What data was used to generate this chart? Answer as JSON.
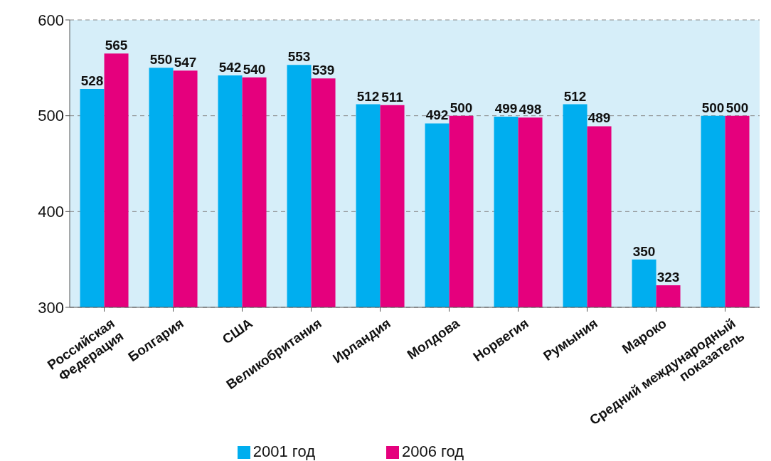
{
  "chart_data": {
    "type": "bar",
    "categories": [
      "Российская\nФедерация",
      "Болгария",
      "США",
      "Великобритания",
      "Ирландия",
      "Молдова",
      "Норвегия",
      "Румыния",
      "Мароко",
      "Средний международный\nпоказатель"
    ],
    "series": [
      {
        "name": "2001 год",
        "color": "#00aeef",
        "values": [
          528,
          550,
          542,
          553,
          512,
          492,
          499,
          512,
          350,
          500
        ]
      },
      {
        "name": "2006 год",
        "color": "#e5007d",
        "values": [
          565,
          547,
          540,
          539,
          511,
          500,
          498,
          489,
          323,
          500
        ]
      }
    ],
    "ylim": [
      300,
      600
    ],
    "yticks": [
      300,
      400,
      500,
      600
    ],
    "grid": "y",
    "legend": "bottom",
    "data_labels": true
  }
}
